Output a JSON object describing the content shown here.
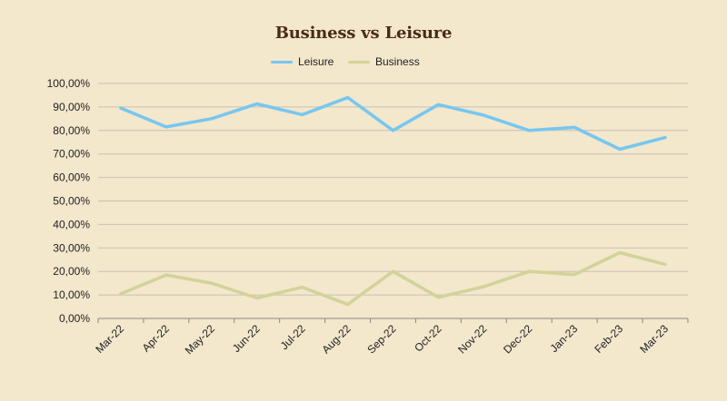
{
  "chart_data": {
    "type": "line",
    "title": "Business vs Leisure",
    "categories": [
      "Mar-22",
      "Apr-22",
      "May-22",
      "Jun-22",
      "Jul-22",
      "Aug-22",
      "Sep-22",
      "Oct-22",
      "Nov-22",
      "Dec-22",
      "Jan-23",
      "Feb-23",
      "Mar-23"
    ],
    "series": [
      {
        "name": "Leisure",
        "color": "#76c7f0",
        "values": [
          89.5,
          81.5,
          85.0,
          91.3,
          86.7,
          94.0,
          80.0,
          91.0,
          86.5,
          80.0,
          81.3,
          72.0,
          77.0
        ]
      },
      {
        "name": "Business",
        "color": "#d2d39a",
        "values": [
          10.5,
          18.5,
          15.0,
          8.7,
          13.3,
          6.0,
          20.0,
          9.0,
          13.5,
          20.0,
          18.7,
          28.0,
          23.0
        ]
      }
    ],
    "y_ticks": [
      "0,00%",
      "10,00%",
      "20,00%",
      "30,00%",
      "40,00%",
      "50,00%",
      "60,00%",
      "70,00%",
      "80,00%",
      "90,00%",
      "100,00%"
    ],
    "ylim": [
      0,
      100
    ],
    "grid": true,
    "legend_position": "top-center",
    "xlabel": "",
    "ylabel": ""
  }
}
